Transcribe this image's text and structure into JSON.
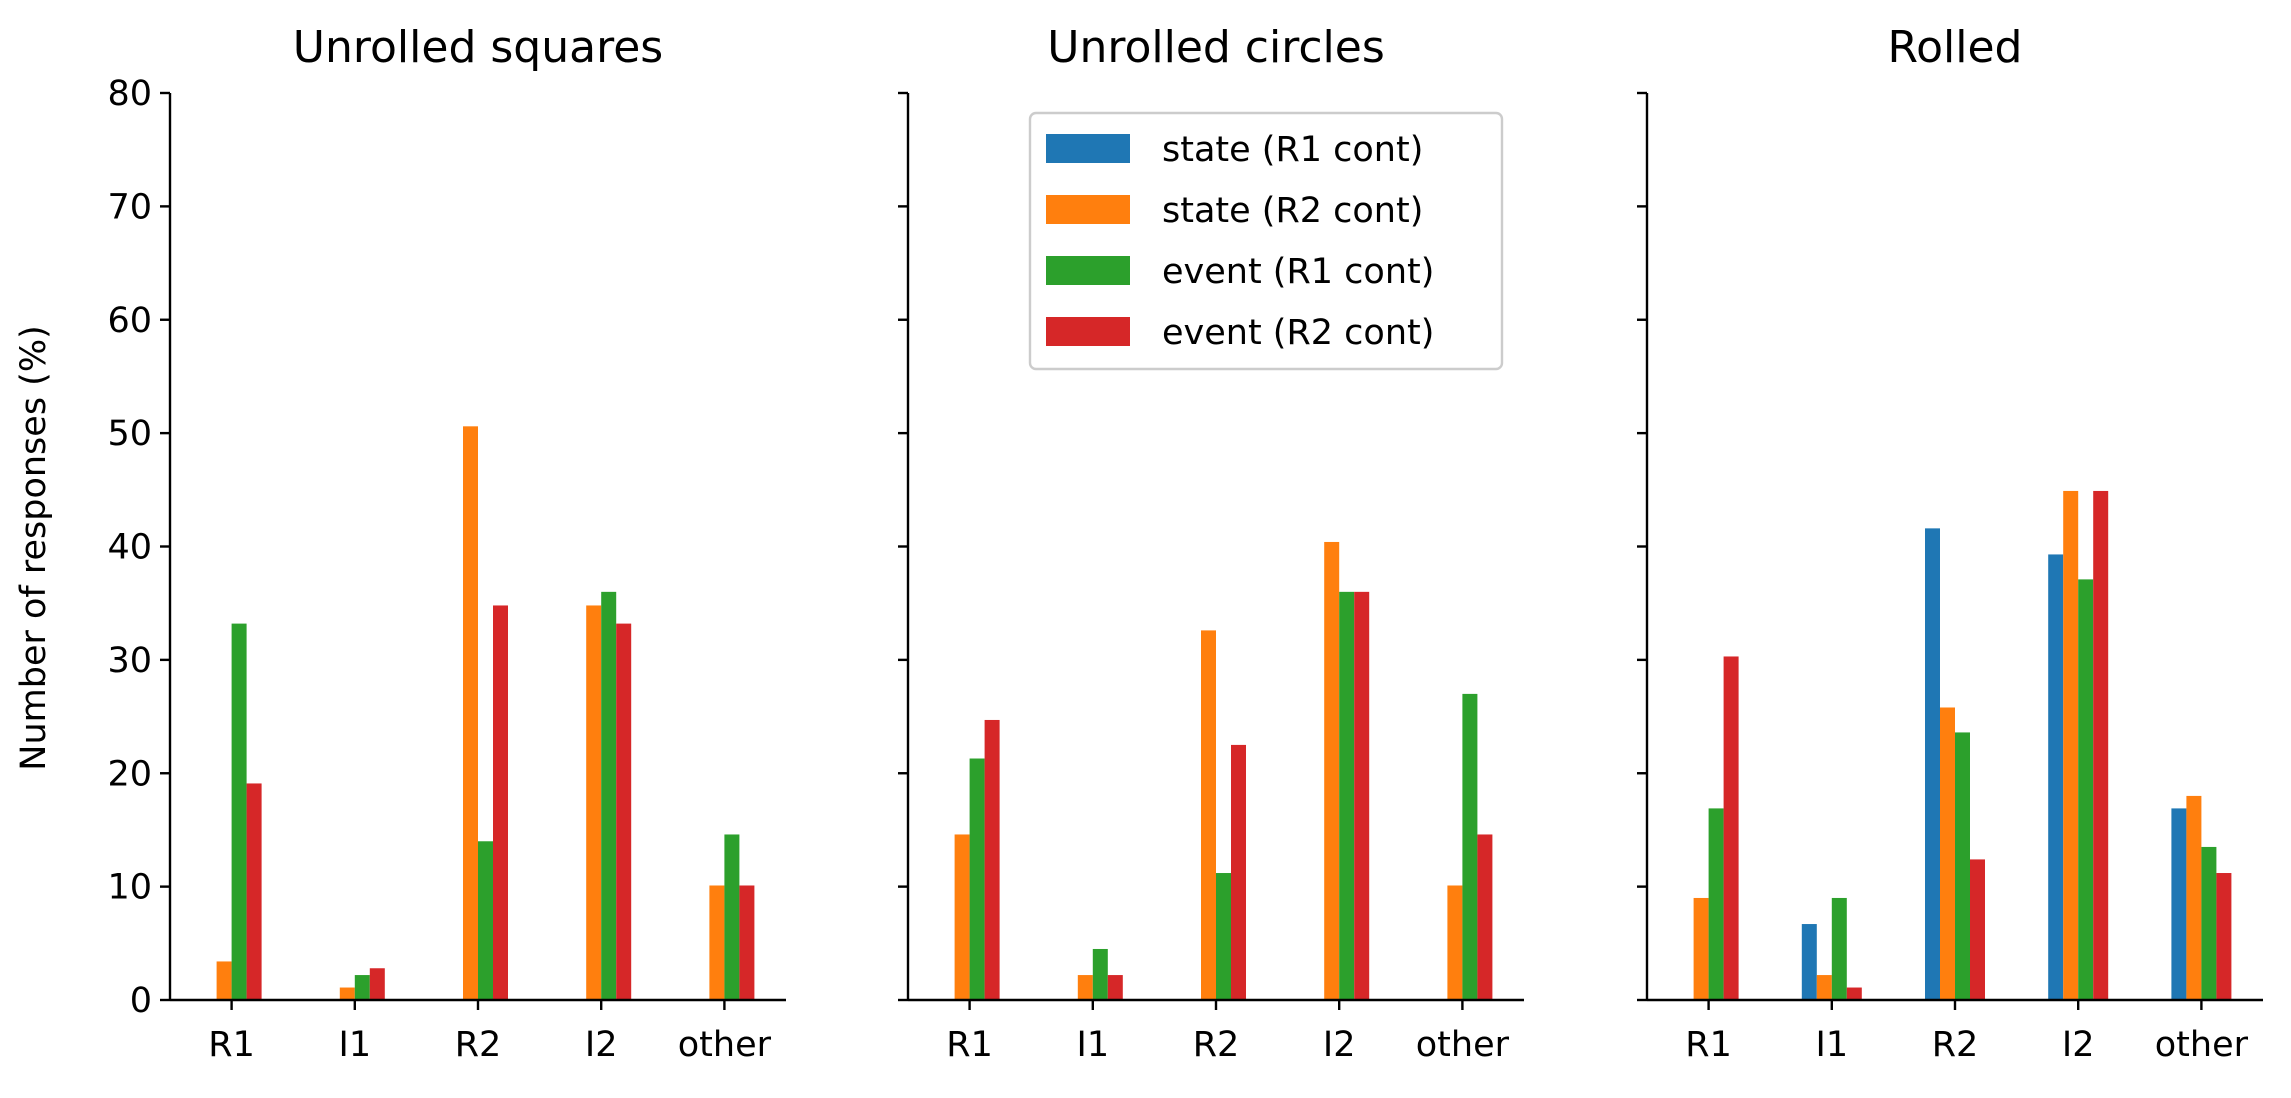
{
  "ylabel": "Number of responses (%)",
  "colors": {
    "state_r1": "#1f77b4",
    "state_r2": "#ff7f0e",
    "event_r1": "#2ca02c",
    "event_r2": "#d62728"
  },
  "legend": {
    "placement": "upper-center of middle panel",
    "entries": [
      "state (R1 cont)",
      "state (R2 cont)",
      "event (R1 cont)",
      "event (R2 cont)"
    ]
  },
  "chart_data": [
    {
      "type": "bar",
      "title": "Unrolled squares",
      "categories": [
        "R1",
        "I1",
        "R2",
        "I2",
        "other"
      ],
      "ylim": [
        0,
        80
      ],
      "yticks": [
        0,
        10,
        20,
        30,
        40,
        50,
        60,
        70,
        80
      ],
      "series": [
        {
          "name": "state (R1 cont)",
          "values": [
            0,
            0,
            0,
            0,
            0
          ]
        },
        {
          "name": "state (R2 cont)",
          "values": [
            3.4,
            1.1,
            50.6,
            34.8,
            10.1
          ]
        },
        {
          "name": "event (R1 cont)",
          "values": [
            33.2,
            2.2,
            14.0,
            36.0,
            14.6
          ]
        },
        {
          "name": "event (R2 cont)",
          "values": [
            19.1,
            2.8,
            34.8,
            33.2,
            10.1
          ]
        }
      ]
    },
    {
      "type": "bar",
      "title": "Unrolled circles",
      "categories": [
        "R1",
        "I1",
        "R2",
        "I2",
        "other"
      ],
      "ylim": [
        0,
        80
      ],
      "yticks": [
        0,
        10,
        20,
        30,
        40,
        50,
        60,
        70,
        80
      ],
      "series": [
        {
          "name": "state (R1 cont)",
          "values": [
            0,
            0,
            0,
            0,
            0
          ]
        },
        {
          "name": "state (R2 cont)",
          "values": [
            14.6,
            2.2,
            32.6,
            40.4,
            10.1
          ]
        },
        {
          "name": "event (R1 cont)",
          "values": [
            21.3,
            4.5,
            11.2,
            36.0,
            27.0
          ]
        },
        {
          "name": "event (R2 cont)",
          "values": [
            24.7,
            2.2,
            22.5,
            36.0,
            14.6
          ]
        }
      ]
    },
    {
      "type": "bar",
      "title": "Rolled",
      "categories": [
        "R1",
        "I1",
        "R2",
        "I2",
        "other"
      ],
      "ylim": [
        0,
        80
      ],
      "yticks": [
        0,
        10,
        20,
        30,
        40,
        50,
        60,
        70,
        80
      ],
      "series": [
        {
          "name": "state (R1 cont)",
          "values": [
            0,
            6.7,
            41.6,
            39.3,
            16.9
          ]
        },
        {
          "name": "state (R2 cont)",
          "values": [
            9.0,
            2.2,
            25.8,
            44.9,
            18.0
          ]
        },
        {
          "name": "event (R1 cont)",
          "values": [
            16.9,
            9.0,
            23.6,
            37.1,
            13.5
          ]
        },
        {
          "name": "event (R2 cont)",
          "values": [
            30.3,
            1.1,
            12.4,
            44.9,
            11.2
          ]
        }
      ]
    }
  ]
}
